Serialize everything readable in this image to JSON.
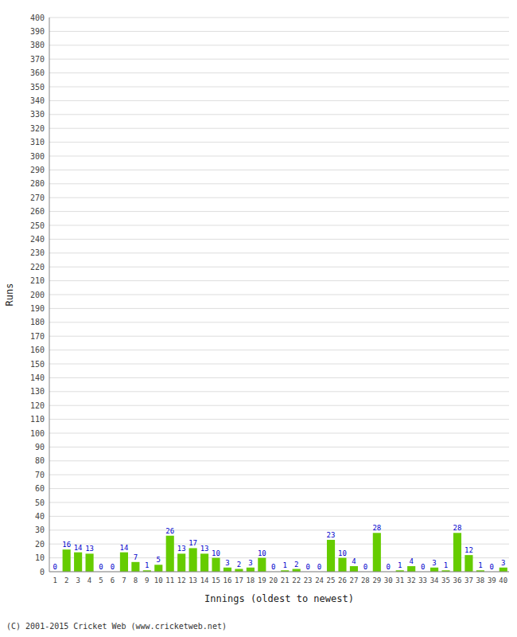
{
  "chart_data": {
    "type": "bar",
    "xlabel": "Innings (oldest to newest)",
    "ylabel": "Runs",
    "categories": [
      "1",
      "2",
      "3",
      "4",
      "5",
      "6",
      "7",
      "8",
      "9",
      "10",
      "11",
      "12",
      "13",
      "14",
      "15",
      "16",
      "17",
      "18",
      "19",
      "20",
      "21",
      "22",
      "23",
      "24",
      "25",
      "26",
      "27",
      "28",
      "29",
      "30",
      "31",
      "32",
      "33",
      "34",
      "35",
      "36",
      "37",
      "38",
      "39",
      "40"
    ],
    "values": [
      0,
      16,
      14,
      13,
      0,
      0,
      14,
      7,
      1,
      5,
      26,
      13,
      17,
      13,
      10,
      3,
      2,
      3,
      10,
      0,
      1,
      2,
      0,
      0,
      23,
      10,
      4,
      0,
      28,
      0,
      1,
      4,
      0,
      3,
      1,
      28,
      12,
      1,
      0,
      3
    ],
    "color": "#66cc00",
    "ylim": [
      0,
      400
    ],
    "yticks": [
      0,
      10,
      20,
      30,
      40,
      50,
      60,
      70,
      80,
      90,
      100,
      110,
      120,
      130,
      140,
      150,
      160,
      170,
      180,
      190,
      200,
      210,
      220,
      230,
      240,
      250,
      260,
      270,
      280,
      290,
      300,
      310,
      320,
      330,
      340,
      350,
      360,
      370,
      380,
      390,
      400
    ],
    "grid": true,
    "data_labels": true,
    "annotations": [
      "(C) 2001-2015 Cricket Web (www.cricketweb.net)"
    ]
  }
}
